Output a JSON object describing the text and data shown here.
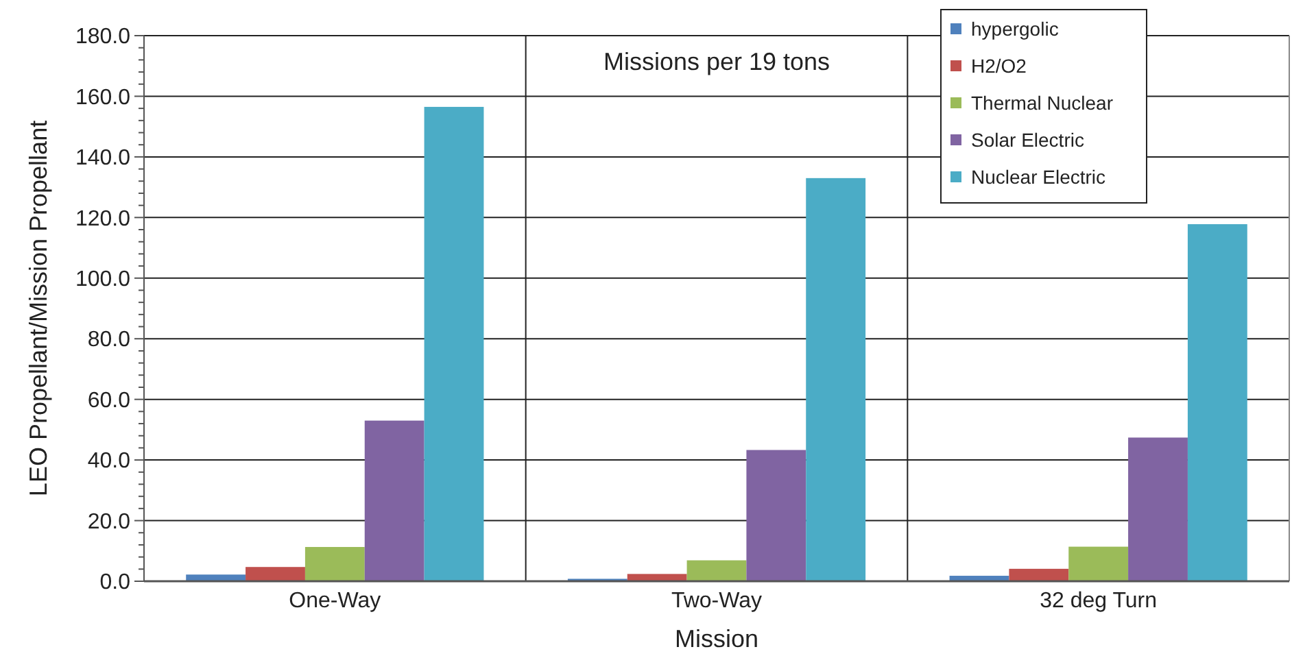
{
  "chart_data": {
    "type": "bar",
    "title": "Missions per 19 tons",
    "xlabel": "Mission",
    "ylabel": "LEO Propellant/Mission Propellant",
    "categories": [
      "One-Way",
      "Two-Way",
      "32 deg Turn"
    ],
    "series": [
      {
        "name": "hypergolic",
        "color": "#4f81bd",
        "values": [
          2.2,
          0.8,
          1.8
        ]
      },
      {
        "name": "H2/O2",
        "color": "#c0504d",
        "values": [
          4.7,
          2.4,
          4.1
        ]
      },
      {
        "name": "Thermal Nuclear",
        "color": "#9bbb59",
        "values": [
          11.3,
          6.9,
          11.4
        ]
      },
      {
        "name": "Solar Electric",
        "color": "#8064a2",
        "values": [
          53,
          43.3,
          47.4
        ]
      },
      {
        "name": "Nuclear Electric",
        "color": "#4bacc6",
        "values": [
          156.5,
          133,
          117.8
        ]
      }
    ],
    "ylim": [
      0,
      180
    ],
    "yticks": [
      {
        "value": 0,
        "label": "0.0"
      },
      {
        "value": 20,
        "label": "20.0"
      },
      {
        "value": 40,
        "label": "40.0"
      },
      {
        "value": 60,
        "label": "60.0"
      },
      {
        "value": 80,
        "label": "80.0"
      },
      {
        "value": 100,
        "label": "100.0"
      },
      {
        "value": 120,
        "label": "120.0"
      },
      {
        "value": 140,
        "label": "140.0"
      },
      {
        "value": 160,
        "label": "160.0"
      },
      {
        "value": 180,
        "label": "180.0"
      }
    ],
    "grid": true,
    "legend": "top right"
  }
}
